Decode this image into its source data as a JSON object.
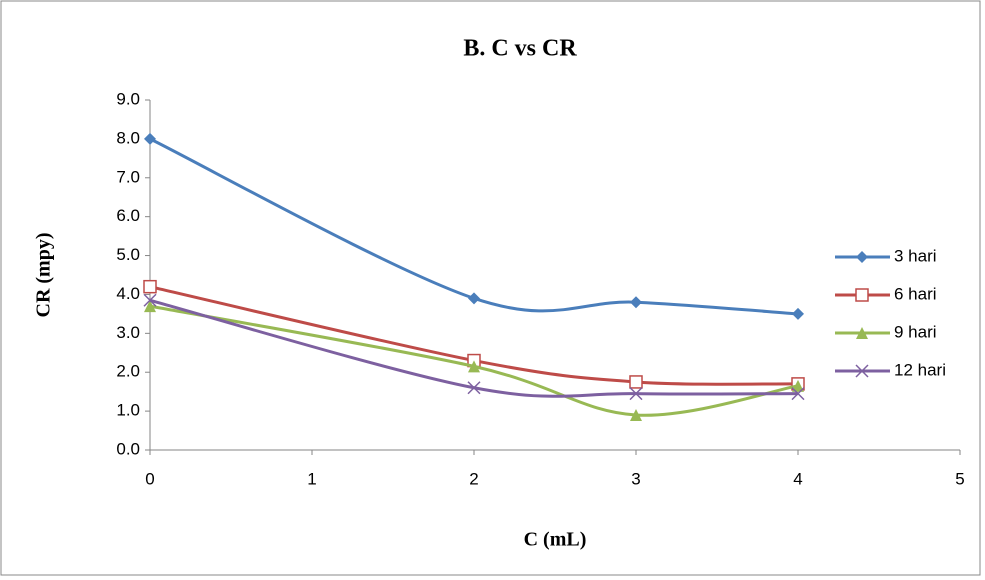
{
  "chart_data": {
    "type": "line",
    "title": "B. C vs CR",
    "x_label": "C (mL)",
    "y_label": "CR (mpy)",
    "x": [
      0,
      2,
      3,
      4
    ],
    "series": [
      {
        "name": "3 hari",
        "color": "#4a7ebb",
        "marker": "diamond",
        "values": [
          8.0,
          3.9,
          3.8,
          3.5
        ]
      },
      {
        "name": "6 hari",
        "color": "#be4b48",
        "marker": "square",
        "values": [
          4.2,
          2.3,
          1.75,
          1.7
        ]
      },
      {
        "name": "9 hari",
        "color": "#98b954",
        "marker": "triangle",
        "values": [
          3.7,
          2.15,
          0.9,
          1.65
        ]
      },
      {
        "name": "12 hari",
        "color": "#7d60a0",
        "marker": "cross",
        "values": [
          3.85,
          1.6,
          1.45,
          1.45
        ]
      }
    ],
    "xlim": [
      0,
      5
    ],
    "xticks": [
      0,
      1,
      2,
      3,
      4,
      5
    ],
    "ylim": [
      0,
      9
    ],
    "yticks": [
      {
        "value": 0,
        "label": "0.0"
      },
      {
        "value": 1,
        "label": "1.0"
      },
      {
        "value": 2,
        "label": "2.0"
      },
      {
        "value": 3,
        "label": "3.0"
      },
      {
        "value": 4,
        "label": "4.0"
      },
      {
        "value": 5,
        "label": "5.0"
      },
      {
        "value": 6,
        "label": "6.0"
      },
      {
        "value": 7,
        "label": "7.0"
      },
      {
        "value": 8,
        "label": "8.0"
      },
      {
        "value": 9,
        "label": "9.0"
      }
    ],
    "grid": false,
    "smooth": true,
    "legend": "right"
  }
}
